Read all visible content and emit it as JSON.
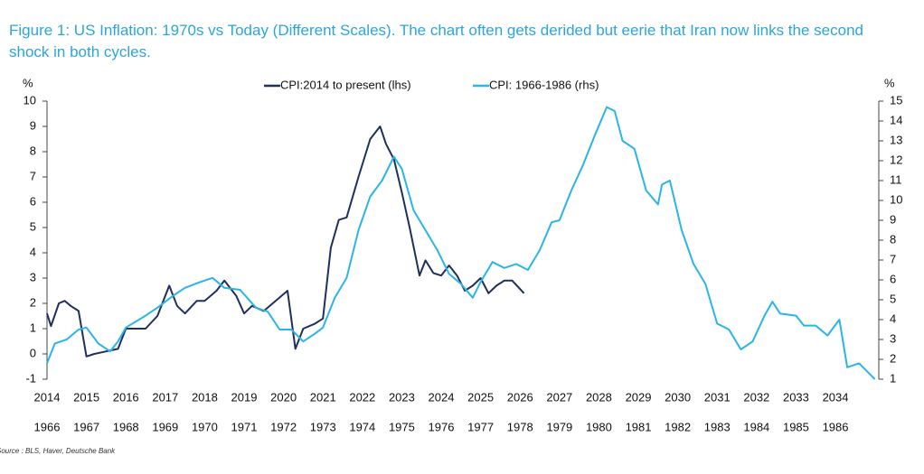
{
  "chart_data": {
    "type": "line",
    "title": "Figure 1: US Inflation: 1970s vs Today (Different Scales). The chart often gets derided but eerie that Iran now links the second shock in both cycles.",
    "y_label": "%",
    "y2_label": "%",
    "source": "Source : BLS, Haver, Deutsche Bank",
    "xlim": [
      2014,
      2035.1
    ],
    "xticks": [
      2014,
      2015,
      2016,
      2017,
      2018,
      2019,
      2020,
      2021,
      2022,
      2023,
      2024,
      2025,
      2026,
      2027,
      2028,
      2029,
      2030,
      2031,
      2032,
      2033,
      2034
    ],
    "x2lim": [
      1966,
      1987.1
    ],
    "x2ticks": [
      1966,
      1967,
      1968,
      1969,
      1970,
      1971,
      1972,
      1973,
      1974,
      1975,
      1976,
      1977,
      1978,
      1979,
      1980,
      1981,
      1982,
      1983,
      1984,
      1985,
      1986
    ],
    "ylim": [
      -1,
      10
    ],
    "yticks": [
      -1,
      0,
      1,
      2,
      3,
      4,
      5,
      6,
      7,
      8,
      9,
      10
    ],
    "y2lim": [
      1,
      15
    ],
    "y2ticks": [
      1,
      2,
      3,
      4,
      5,
      6,
      7,
      8,
      9,
      10,
      11,
      12,
      13,
      14,
      15
    ],
    "series": [
      {
        "name": "CPI:2014 to present (lhs)",
        "color": "#1f2f5e",
        "x": [
          2014.0,
          2014.1,
          2014.3,
          2014.45,
          2014.6,
          2014.8,
          2015.0,
          2015.2,
          2015.5,
          2015.8,
          2016.0,
          2016.2,
          2016.5,
          2016.8,
          2017.1,
          2017.3,
          2017.5,
          2017.8,
          2018.0,
          2018.3,
          2018.5,
          2018.8,
          2019.0,
          2019.2,
          2019.5,
          2019.8,
          2020.1,
          2020.3,
          2020.5,
          2020.8,
          2021.0,
          2021.2,
          2021.4,
          2021.6,
          2021.9,
          2022.2,
          2022.45,
          2022.6,
          2022.8,
          2023.0,
          2023.2,
          2023.45,
          2023.6,
          2023.8,
          2024.0,
          2024.2,
          2024.4,
          2024.6,
          2024.8,
          2025.0,
          2025.2,
          2025.4,
          2025.6,
          2025.8,
          2026.1
        ],
        "values": [
          1.6,
          1.1,
          2.0,
          2.1,
          1.9,
          1.7,
          -0.1,
          0.0,
          0.1,
          0.2,
          1.0,
          1.0,
          1.0,
          1.5,
          2.7,
          1.9,
          1.6,
          2.1,
          2.1,
          2.5,
          2.9,
          2.3,
          1.6,
          1.9,
          1.7,
          2.1,
          2.5,
          0.2,
          1.0,
          1.2,
          1.4,
          4.2,
          5.3,
          5.4,
          7.0,
          8.5,
          9.0,
          8.3,
          7.7,
          6.4,
          5.0,
          3.1,
          3.7,
          3.2,
          3.1,
          3.5,
          3.1,
          2.5,
          2.7,
          3.0,
          2.4,
          2.7,
          2.9,
          2.9,
          2.4
        ]
      },
      {
        "name": "CPI: 1966-1986 (rhs)",
        "color": "#2ab5e8",
        "axis": "y2",
        "xaxis": "x2",
        "x": [
          1966.0,
          1966.2,
          1966.5,
          1966.8,
          1967.0,
          1967.3,
          1967.6,
          1967.8,
          1968.0,
          1968.5,
          1968.8,
          1969.2,
          1969.5,
          1969.9,
          1970.2,
          1970.5,
          1970.9,
          1971.3,
          1971.6,
          1971.9,
          1972.2,
          1972.5,
          1972.8,
          1973.0,
          1973.3,
          1973.6,
          1973.9,
          1974.2,
          1974.5,
          1974.8,
          1975.0,
          1975.3,
          1975.6,
          1975.9,
          1976.2,
          1976.5,
          1976.8,
          1977.0,
          1977.3,
          1977.6,
          1977.9,
          1978.2,
          1978.5,
          1978.8,
          1979.0,
          1979.3,
          1979.6,
          1979.9,
          1980.2,
          1980.4,
          1980.6,
          1980.9,
          1981.2,
          1981.5,
          1981.6,
          1981.8,
          1982.1,
          1982.4,
          1982.7,
          1983.0,
          1983.3,
          1983.6,
          1983.9,
          1984.2,
          1984.4,
          1984.6,
          1985.0,
          1985.2,
          1985.5,
          1985.8,
          1986.1,
          1986.3,
          1986.6,
          1986.9,
          1987.0
        ],
        "values": [
          1.8,
          2.8,
          3.0,
          3.5,
          3.6,
          2.8,
          2.4,
          2.9,
          3.6,
          4.2,
          4.6,
          5.2,
          5.6,
          5.9,
          6.1,
          5.6,
          5.5,
          4.6,
          4.4,
          3.5,
          3.5,
          2.9,
          3.3,
          3.6,
          5.1,
          6.1,
          8.5,
          10.2,
          11.0,
          12.2,
          11.6,
          9.5,
          8.5,
          7.5,
          6.3,
          5.8,
          5.1,
          5.9,
          6.9,
          6.6,
          6.8,
          6.5,
          7.5,
          8.9,
          9.0,
          10.5,
          11.8,
          13.3,
          14.7,
          14.5,
          13.0,
          12.6,
          10.5,
          9.8,
          10.8,
          11.0,
          8.5,
          6.8,
          5.8,
          3.8,
          3.5,
          2.5,
          2.9,
          4.2,
          4.9,
          4.3,
          4.2,
          3.7,
          3.7,
          3.2,
          4.0,
          1.6,
          1.8,
          1.2,
          1.0
        ]
      }
    ]
  }
}
